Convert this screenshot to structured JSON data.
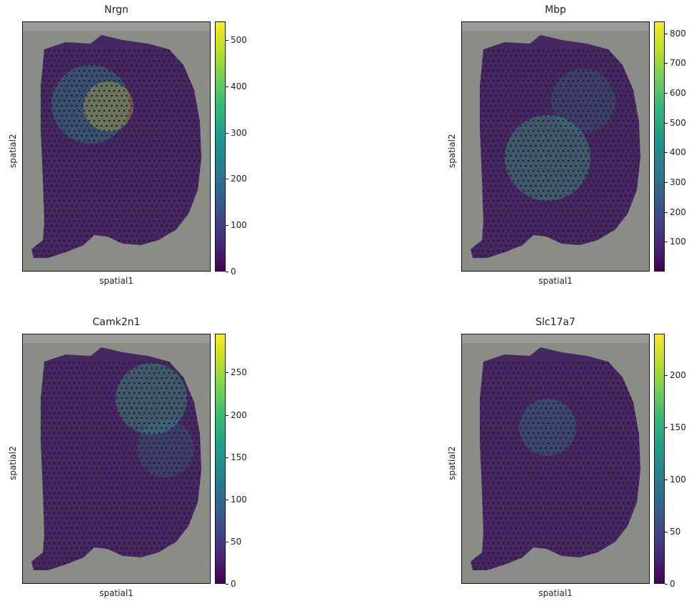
{
  "chart_data": [
    {
      "type": "heatmap",
      "title": "Nrgn",
      "xlabel": "spatial1",
      "ylabel": "spatial2",
      "colorbar": {
        "min": 0,
        "max": 540,
        "ticks": [
          0,
          100,
          200,
          300,
          400,
          500
        ],
        "colormap": "viridis"
      }
    },
    {
      "type": "heatmap",
      "title": "Mbp",
      "xlabel": "spatial1",
      "ylabel": "spatial2",
      "colorbar": {
        "min": 0,
        "max": 840,
        "ticks": [
          100,
          200,
          300,
          400,
          500,
          600,
          700,
          800
        ],
        "colormap": "viridis"
      }
    },
    {
      "type": "heatmap",
      "title": "Camk2n1",
      "xlabel": "spatial1",
      "ylabel": "spatial2",
      "colorbar": {
        "min": 0,
        "max": 296,
        "ticks": [
          0,
          50,
          100,
          150,
          200,
          250
        ],
        "colormap": "viridis"
      }
    },
    {
      "type": "heatmap",
      "title": "Slc17a7",
      "xlabel": "spatial1",
      "ylabel": "spatial2",
      "colorbar": {
        "min": 0,
        "max": 240,
        "ticks": [
          0,
          50,
          100,
          150,
          200
        ],
        "colormap": "viridis"
      }
    }
  ],
  "colors": {
    "background_tissue": "#8a8d86",
    "low": "#440154",
    "high": "#fde725"
  }
}
